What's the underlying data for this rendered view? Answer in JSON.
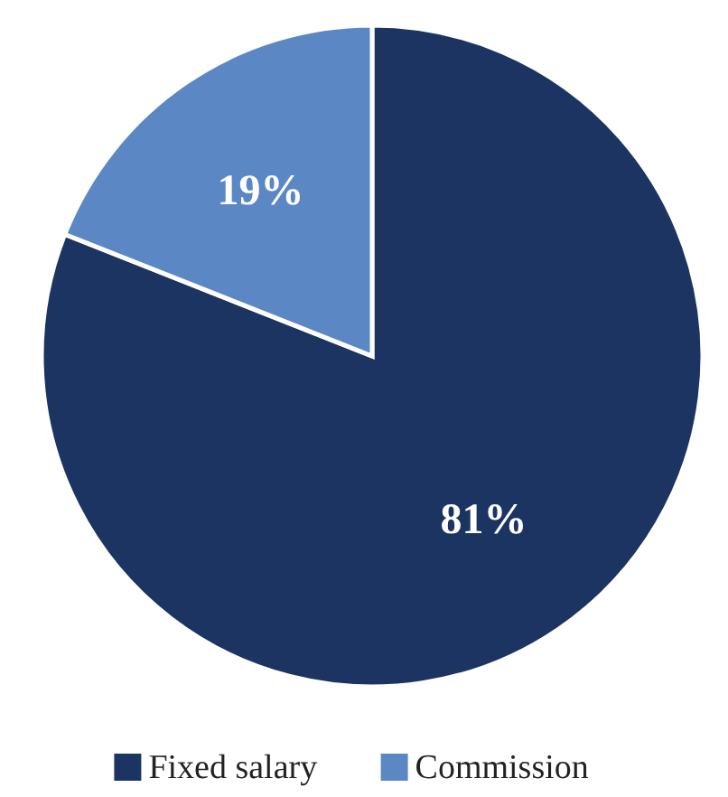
{
  "chart_data": {
    "type": "pie",
    "categories": [
      "Fixed salary",
      "Commission"
    ],
    "values": [
      81,
      19
    ],
    "colors": [
      "#1c3461",
      "#5b87c5"
    ],
    "value_labels": [
      "81%",
      "19%"
    ],
    "legend": "bottom"
  }
}
